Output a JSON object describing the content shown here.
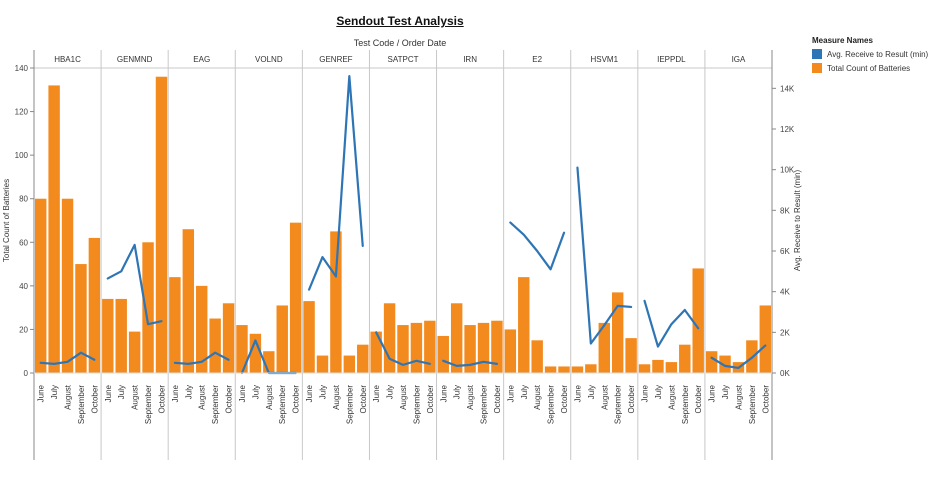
{
  "chart_data": {
    "type": "bar+line",
    "title": "Sendout Test Analysis",
    "subtitle": "Test Code  /  Order Date",
    "months": [
      "June",
      "July",
      "August",
      "September",
      "October"
    ],
    "groups": [
      {
        "code": "HBA1C",
        "bars": [
          80,
          132,
          80,
          50,
          62
        ],
        "line": [
          500,
          450,
          550,
          1000,
          650
        ]
      },
      {
        "code": "GENMND",
        "bars": [
          34,
          34,
          19,
          60,
          136
        ],
        "line": [
          4650,
          5000,
          6300,
          2400,
          2550
        ]
      },
      {
        "code": "EAG",
        "bars": [
          44,
          66,
          40,
          25,
          32
        ],
        "line": [
          500,
          450,
          550,
          1000,
          650
        ]
      },
      {
        "code": "VOLND",
        "bars": [
          22,
          18,
          10,
          31,
          69
        ],
        "line": [
          0,
          1600,
          0,
          0,
          0
        ]
      },
      {
        "code": "GENREF",
        "bars": [
          33,
          8,
          65,
          8,
          13
        ],
        "line": [
          4100,
          5700,
          4750,
          14600,
          6250
        ]
      },
      {
        "code": "SATPCT",
        "bars": [
          19,
          32,
          22,
          23,
          24
        ],
        "line": [
          2000,
          700,
          400,
          600,
          450
        ]
      },
      {
        "code": "IRN",
        "bars": [
          17,
          32,
          22,
          23,
          24
        ],
        "line": [
          600,
          350,
          400,
          550,
          450
        ]
      },
      {
        "code": "E2",
        "bars": [
          20,
          44,
          15,
          3,
          3
        ],
        "line": [
          7400,
          6800,
          6000,
          5100,
          6900
        ]
      },
      {
        "code": "HSVM1",
        "bars": [
          3,
          4,
          23,
          37,
          16
        ],
        "line": [
          10100,
          1450,
          2350,
          3300,
          3250
        ]
      },
      {
        "code": "IEPPDL",
        "bars": [
          4,
          6,
          5,
          13,
          48
        ],
        "line": [
          3550,
          1300,
          2400,
          3100,
          2200
        ]
      },
      {
        "code": "IGA",
        "bars": [
          10,
          8,
          5,
          15,
          31
        ],
        "line": [
          750,
          350,
          250,
          750,
          1350
        ]
      }
    ],
    "y_left": {
      "label": "Total Count of Batteries",
      "min": 0,
      "max": 140,
      "ticks": [
        0,
        20,
        40,
        60,
        80,
        100,
        120,
        140
      ]
    },
    "y_right": {
      "label": "Avg. Receive to Result (min)",
      "min": 0,
      "max": 15000,
      "ticks": [
        0,
        2000,
        4000,
        6000,
        8000,
        10000,
        12000,
        14000
      ],
      "tick_labels": [
        "0K",
        "2K",
        "4K",
        "6K",
        "8K",
        "10K",
        "12K",
        "14K"
      ]
    },
    "legend": {
      "title": "Measure Names",
      "items": [
        {
          "label": "Avg. Receive to Result (min)",
          "color": "#2e75b6"
        },
        {
          "label": "Total Count of Batteries",
          "color": "#f28a1e"
        }
      ]
    },
    "colors": {
      "bar": "#f28a1e",
      "line": "#2e75b6",
      "divider": "#c8c8c8",
      "axis": "#888888"
    }
  }
}
